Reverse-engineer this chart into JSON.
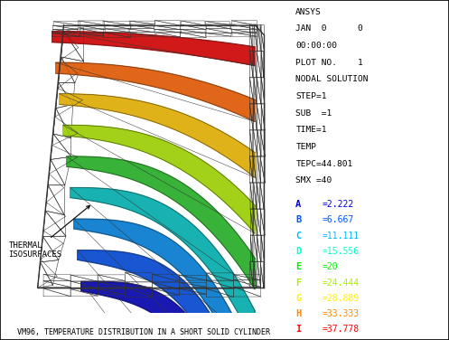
{
  "title": "VM96, TEMPERATURE DISTRIBUTION IN A SHORT SOLID CYLINDER",
  "annotation_label": "THERMAL\nISOSURFACES",
  "bg_color": "#ffffff",
  "info_lines": [
    "ANSYS",
    "JAN  0      0",
    "00:00:00",
    "PLOT NO.    1",
    "NODAL SOLUTION",
    "STEP=1",
    "SUB  =1",
    "TIME=1",
    "TEMP",
    "TEPC=44.801",
    "SMX =40"
  ],
  "legend_labels": [
    "A",
    "B",
    "C",
    "D",
    "E",
    "F",
    "G",
    "H",
    "I"
  ],
  "legend_values": [
    "=2.222",
    "=6.667",
    "=11.111",
    "=15.556",
    "=20",
    "=24.444",
    "=28.889",
    "=33.333",
    "=37.778"
  ],
  "legend_colors": [
    "#0000dd",
    "#0055ff",
    "#00bbff",
    "#00ffcc",
    "#00ee00",
    "#aaee00",
    "#ffee00",
    "#ff8800",
    "#ff0000"
  ],
  "iso_colors_top_to_bot": [
    "#cc0000",
    "#dd5500",
    "#ddaa00",
    "#99cc00",
    "#22aa22",
    "#00aaaa",
    "#0077cc",
    "#0044cc",
    "#0000aa"
  ],
  "mesh_color": "#333333",
  "mesh_lw": 0.4
}
